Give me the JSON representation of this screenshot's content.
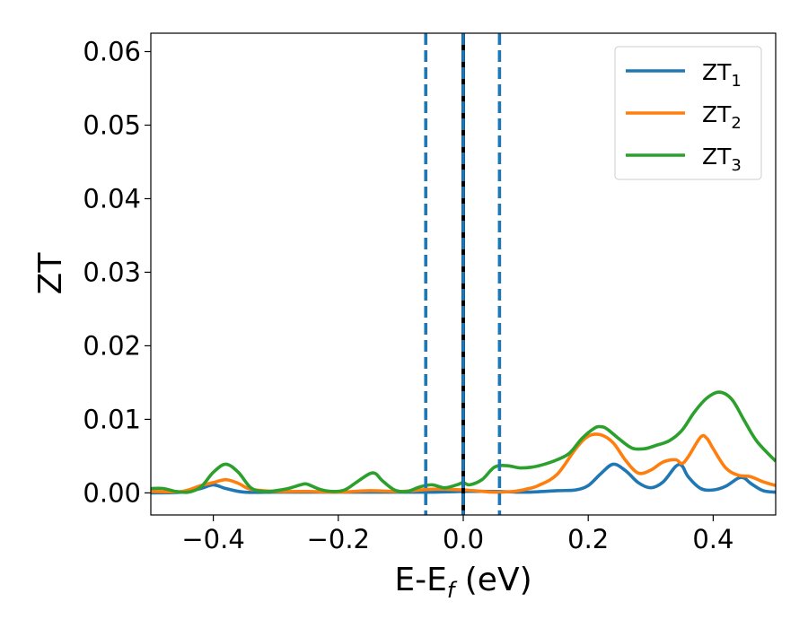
{
  "chart_data": {
    "type": "line",
    "xlabel_main": "E-E",
    "xlabel_sub": "f",
    "xlabel_unit": " (eV)",
    "ylabel": "ZT",
    "xlim": [
      -0.5,
      0.5
    ],
    "ylim": [
      -0.003,
      0.0625
    ],
    "xticks": [
      -0.4,
      -0.2,
      0.0,
      0.2,
      0.4
    ],
    "xtick_labels": [
      "−0.4",
      "−0.2",
      "0.0",
      "0.2",
      "0.4"
    ],
    "yticks": [
      0.0,
      0.01,
      0.02,
      0.03,
      0.04,
      0.05,
      0.06
    ],
    "ytick_labels": [
      "0.00",
      "0.01",
      "0.02",
      "0.03",
      "0.04",
      "0.05",
      "0.06"
    ],
    "legend_position": "top-right",
    "grid": false,
    "vlines": [
      {
        "x": -0.06,
        "style": "dashed",
        "color": "#1f77b4"
      },
      {
        "x": 0.0,
        "style": "solid",
        "color": "#000000"
      },
      {
        "x": 0.0,
        "style": "dashed",
        "color": "#1f77b4"
      },
      {
        "x": 0.058,
        "style": "dashed",
        "color": "#1f77b4"
      }
    ],
    "series": [
      {
        "name_main": "ZT",
        "name_sub": "1",
        "color": "#1f77b4",
        "x": [
          -0.5,
          -0.45,
          -0.42,
          -0.4,
          -0.38,
          -0.35,
          -0.3,
          -0.25,
          -0.2,
          -0.15,
          -0.1,
          -0.05,
          0.0,
          0.05,
          0.1,
          0.15,
          0.18,
          0.2,
          0.22,
          0.24,
          0.26,
          0.28,
          0.3,
          0.32,
          0.34,
          0.35,
          0.36,
          0.38,
          0.4,
          0.42,
          0.44,
          0.45,
          0.46,
          0.48,
          0.5
        ],
        "y": [
          0.0,
          0.0001,
          0.0006,
          0.0011,
          0.0006,
          0.0001,
          0.0001,
          0.0001,
          0.0001,
          0.0001,
          0.0001,
          0.0001,
          0.0002,
          0.0002,
          0.0001,
          0.0003,
          0.0004,
          0.001,
          0.0026,
          0.0039,
          0.003,
          0.0014,
          0.0007,
          0.0015,
          0.0036,
          0.0037,
          0.0022,
          0.0006,
          0.0004,
          0.0009,
          0.002,
          0.002,
          0.0013,
          0.0003,
          0.0001
        ]
      },
      {
        "name_main": "ZT",
        "name_sub": "2",
        "color": "#ff7f0e",
        "x": [
          -0.5,
          -0.45,
          -0.42,
          -0.4,
          -0.38,
          -0.36,
          -0.34,
          -0.3,
          -0.25,
          -0.2,
          -0.15,
          -0.1,
          -0.05,
          0.0,
          0.05,
          0.08,
          0.1,
          0.12,
          0.15,
          0.18,
          0.2,
          0.22,
          0.24,
          0.26,
          0.28,
          0.3,
          0.32,
          0.34,
          0.35,
          0.36,
          0.38,
          0.39,
          0.4,
          0.42,
          0.44,
          0.46,
          0.48,
          0.5
        ],
        "y": [
          0.0002,
          0.0002,
          0.001,
          0.0014,
          0.0018,
          0.0013,
          0.0005,
          0.0002,
          0.0002,
          0.0001,
          0.0003,
          0.0002,
          0.0005,
          0.0004,
          0.0001,
          0.0002,
          0.0005,
          0.001,
          0.0025,
          0.006,
          0.0077,
          0.0079,
          0.0068,
          0.0044,
          0.0027,
          0.0031,
          0.0042,
          0.0045,
          0.004,
          0.0049,
          0.0076,
          0.0074,
          0.006,
          0.0034,
          0.0024,
          0.0022,
          0.0015,
          0.001
        ]
      },
      {
        "name_main": "ZT",
        "name_sub": "3",
        "color": "#2ca02c",
        "x": [
          -0.5,
          -0.48,
          -0.46,
          -0.44,
          -0.42,
          -0.4,
          -0.38,
          -0.36,
          -0.34,
          -0.32,
          -0.3,
          -0.28,
          -0.26,
          -0.25,
          -0.23,
          -0.21,
          -0.19,
          -0.17,
          -0.15,
          -0.14,
          -0.13,
          -0.11,
          -0.09,
          -0.07,
          -0.05,
          -0.03,
          -0.01,
          0.0,
          0.01,
          0.03,
          0.05,
          0.07,
          0.09,
          0.11,
          0.13,
          0.15,
          0.17,
          0.19,
          0.21,
          0.22,
          0.23,
          0.25,
          0.27,
          0.29,
          0.31,
          0.33,
          0.35,
          0.37,
          0.39,
          0.41,
          0.43,
          0.45,
          0.47,
          0.5
        ],
        "y": [
          0.0006,
          0.0006,
          0.0002,
          0.0001,
          0.0008,
          0.0028,
          0.0039,
          0.0028,
          0.0007,
          0.0002,
          0.0003,
          0.0006,
          0.0011,
          0.0012,
          0.0005,
          0.0002,
          0.0004,
          0.0015,
          0.0026,
          0.0026,
          0.0017,
          0.0004,
          0.0002,
          0.0008,
          0.0011,
          0.0007,
          0.0011,
          0.0014,
          0.0011,
          0.0018,
          0.0035,
          0.0037,
          0.0034,
          0.0035,
          0.0039,
          0.0045,
          0.0054,
          0.0074,
          0.0088,
          0.009,
          0.0087,
          0.0073,
          0.0061,
          0.006,
          0.0065,
          0.0071,
          0.0085,
          0.011,
          0.0129,
          0.0137,
          0.0127,
          0.0098,
          0.007,
          0.0043
        ]
      }
    ]
  }
}
